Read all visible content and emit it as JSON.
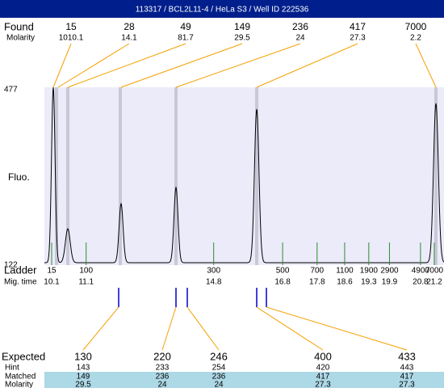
{
  "header": {
    "title": "113317 / BCL2L11-4 / HeLa S3 / Well ID 222536"
  },
  "found": {
    "label": "Found",
    "sublabel": "Molarity",
    "sizes": [
      15,
      28,
      49,
      149,
      236,
      417,
      7000
    ],
    "molarity": [
      "1010.1",
      "14.1",
      "81.7",
      "29.5",
      "24",
      "27.3",
      "2.2"
    ]
  },
  "plot": {
    "ylabel": "Fluo.",
    "ytop": 477,
    "ybottom": 122
  },
  "ladder": {
    "label": "Ladder",
    "sublabel": "Mig. time",
    "sizes": [
      15,
      100,
      300,
      500,
      700,
      1100,
      1900,
      2900,
      4900,
      7000
    ],
    "times": [
      10.1,
      11.1,
      14.8,
      16.8,
      17.8,
      18.6,
      19.3,
      19.9,
      20.8,
      21.2
    ]
  },
  "expected": {
    "labels": [
      "Expected",
      "Hint",
      "Matched",
      "Molarity"
    ],
    "expected": [
      130,
      220,
      246,
      400,
      433
    ],
    "hint": [
      143,
      233,
      254,
      420,
      443
    ],
    "matched": [
      149,
      236,
      236,
      417,
      417
    ],
    "molarity": [
      29.5,
      24,
      24,
      27.3,
      27.3
    ]
  }
}
